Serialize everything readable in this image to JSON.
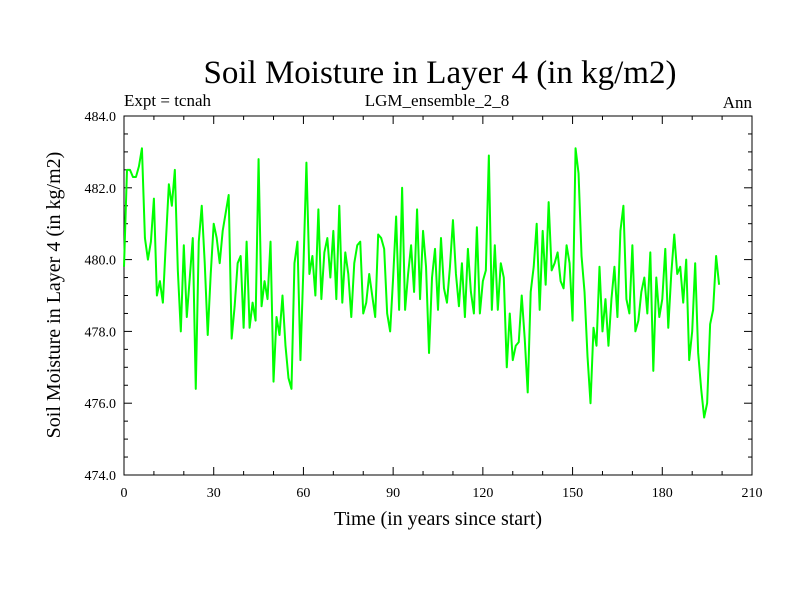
{
  "chart_data": {
    "type": "line",
    "title": "Soil Moisture in Layer 4 (in kg/m2)",
    "left_label": "Expt = tcnah",
    "center_label": "LGM_ensemble_2_8",
    "right_label": "Ann",
    "xlabel": "Time (in years since start)",
    "ylabel": "Soil Moisture in Layer 4 (in kg/m2)",
    "xlim": [
      0,
      210
    ],
    "ylim": [
      474,
      484
    ],
    "x_ticks": [
      0,
      30,
      60,
      90,
      120,
      150,
      180,
      210
    ],
    "x_tick_labels": [
      "0",
      "30",
      "60",
      "90",
      "120",
      "150",
      "180",
      "210"
    ],
    "y_ticks": [
      474,
      476,
      478,
      480,
      482,
      484
    ],
    "y_tick_labels": [
      "474.0",
      "476.0",
      "478.0",
      "480.0",
      "482.0",
      "484.0"
    ],
    "line_color": "#00ff00",
    "series": [
      {
        "name": "Soil Moisture Layer 4",
        "x": [
          0,
          1,
          2,
          3,
          4,
          5,
          6,
          7,
          8,
          9,
          10,
          11,
          12,
          13,
          14,
          15,
          16,
          17,
          18,
          19,
          20,
          21,
          22,
          23,
          24,
          25,
          26,
          27,
          28,
          29,
          30,
          31,
          32,
          33,
          34,
          35,
          36,
          37,
          38,
          39,
          40,
          41,
          42,
          43,
          44,
          45,
          46,
          47,
          48,
          49,
          50,
          51,
          52,
          53,
          54,
          55,
          56,
          57,
          58,
          59,
          60,
          61,
          62,
          63,
          64,
          65,
          66,
          67,
          68,
          69,
          70,
          71,
          72,
          73,
          74,
          75,
          76,
          77,
          78,
          79,
          80,
          81,
          82,
          83,
          84,
          85,
          86,
          87,
          88,
          89,
          90,
          91,
          92,
          93,
          94,
          95,
          96,
          97,
          98,
          99,
          100,
          101,
          102,
          103,
          104,
          105,
          106,
          107,
          108,
          109,
          110,
          111,
          112,
          113,
          114,
          115,
          116,
          117,
          118,
          119,
          120,
          121,
          122,
          123,
          124,
          125,
          126,
          127,
          128,
          129,
          130,
          131,
          132,
          133,
          134,
          135,
          136,
          137,
          138,
          139,
          140,
          141,
          142,
          143,
          144,
          145,
          146,
          147,
          148,
          149,
          150,
          151,
          152,
          153,
          154,
          155,
          156,
          157,
          158,
          159,
          160,
          161,
          162,
          163,
          164,
          165,
          166,
          167,
          168,
          169,
          170,
          171,
          172,
          173,
          174,
          175,
          176,
          177,
          178,
          179,
          180,
          181,
          182,
          183,
          184,
          185,
          186,
          187,
          188,
          189,
          190,
          191,
          192,
          193,
          194,
          195,
          196,
          197,
          198,
          199
        ],
        "values": [
          479.8,
          482.5,
          482.5,
          482.3,
          482.3,
          482.6,
          483.1,
          480.6,
          480.0,
          480.5,
          481.7,
          479.0,
          479.4,
          478.8,
          480.5,
          482.1,
          481.5,
          482.5,
          479.7,
          478.0,
          480.4,
          478.4,
          479.5,
          480.6,
          476.4,
          480.5,
          481.5,
          479.9,
          477.9,
          479.6,
          481.0,
          480.6,
          479.9,
          480.8,
          481.3,
          481.8,
          477.8,
          478.7,
          479.9,
          480.1,
          478.1,
          480.5,
          478.1,
          478.8,
          478.3,
          482.8,
          478.7,
          479.4,
          478.9,
          480.5,
          476.6,
          478.4,
          477.9,
          479.0,
          477.6,
          476.7,
          476.4,
          479.9,
          480.5,
          477.2,
          479.8,
          482.7,
          479.6,
          480.1,
          479.0,
          481.4,
          478.9,
          480.2,
          480.6,
          479.5,
          480.8,
          478.9,
          481.5,
          478.8,
          480.2,
          479.6,
          478.4,
          479.9,
          480.4,
          480.5,
          478.5,
          478.8,
          479.6,
          479.0,
          478.4,
          480.7,
          480.6,
          480.3,
          478.5,
          478.0,
          479.5,
          481.2,
          478.6,
          482.0,
          478.6,
          479.6,
          480.4,
          479.1,
          481.4,
          478.9,
          480.8,
          479.8,
          477.4,
          479.5,
          480.3,
          478.6,
          480.6,
          479.2,
          478.8,
          479.8,
          481.1,
          479.6,
          478.7,
          479.9,
          478.4,
          480.3,
          479.1,
          478.5,
          480.9,
          478.5,
          479.4,
          479.7,
          482.9,
          478.6,
          480.4,
          478.6,
          479.9,
          479.5,
          477.0,
          478.5,
          477.2,
          477.6,
          477.7,
          479.0,
          477.8,
          476.3,
          479.1,
          479.8,
          481.0,
          478.6,
          480.8,
          479.3,
          481.6,
          479.7,
          479.9,
          480.2,
          479.4,
          479.2,
          480.4,
          479.9,
          478.3,
          483.1,
          482.4,
          480.1,
          479.1,
          477.3,
          476.0,
          478.1,
          477.6,
          479.8,
          478.0,
          478.9,
          477.6,
          478.9,
          479.8,
          478.4,
          480.8,
          481.5,
          478.9,
          478.5,
          480.4,
          478.0,
          478.3,
          479.1,
          479.5,
          478.5,
          480.2,
          476.9,
          479.5,
          478.4,
          478.9,
          480.3,
          478.1,
          479.6,
          480.7,
          479.6,
          479.8,
          478.8,
          480.0,
          477.2,
          478.0,
          479.9,
          477.4,
          476.4,
          475.6,
          476.0,
          478.2,
          478.6,
          480.1,
          479.3
        ]
      }
    ]
  }
}
